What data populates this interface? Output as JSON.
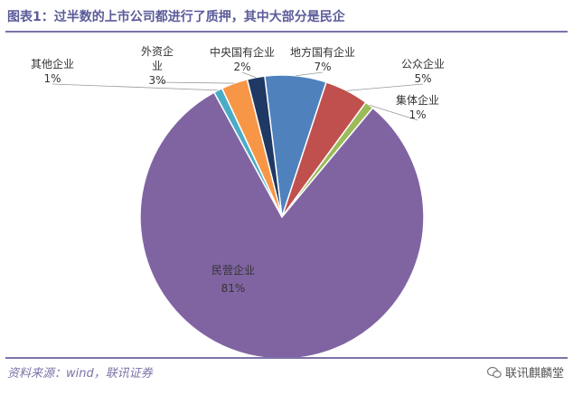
{
  "title": "图表1：过半数的上市公司都进行了质押，其中大部分是民企",
  "source": "资料来源：wind，联讯证券",
  "watermark": "联讯麒麟堂",
  "chart_data": {
    "type": "pie",
    "slices": [
      {
        "name": "地方国有企业",
        "value": 7,
        "label": "7%",
        "color": "#4f81bd"
      },
      {
        "name": "公众企业",
        "value": 5,
        "label": "5%",
        "color": "#c0504d"
      },
      {
        "name": "集体企业",
        "value": 1,
        "label": "1%",
        "color": "#9bbb59"
      },
      {
        "name": "民营企业",
        "value": 81,
        "label": "81%",
        "color": "#8064a2"
      },
      {
        "name": "其他企业",
        "value": 1,
        "label": "1%",
        "color": "#4bacc6"
      },
      {
        "name": "外资企业",
        "value": 3,
        "label": "3%",
        "color": "#f79646"
      },
      {
        "name": "中央国有企业",
        "value": 2,
        "label": "2%",
        "color": "#1f3864"
      }
    ]
  }
}
